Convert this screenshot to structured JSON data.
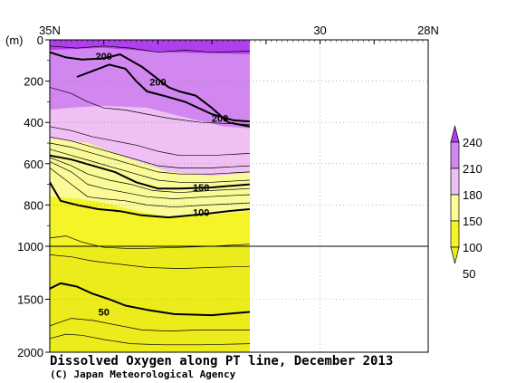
{
  "chart_data": {
    "type": "heatmap",
    "title": "Dissolved Oxygen along PT line, December 2013",
    "credit": "(C) Japan Meteorological Agency",
    "y_unit_label": "(m)",
    "x_axis": {
      "ticks": [
        {
          "value": 35,
          "label": "35N"
        },
        {
          "value": 30,
          "label": "30"
        },
        {
          "value": 28,
          "label": "28N"
        }
      ],
      "range": [
        35,
        28
      ]
    },
    "y_axis": {
      "range": [
        0,
        2000
      ],
      "break_depth": 1000,
      "upper_ticks": [
        0,
        200,
        400,
        600,
        800,
        1000
      ],
      "lower_ticks": [
        1500,
        2000
      ]
    },
    "data_extent_lat": [
      35,
      31.3
    ],
    "colorbar": {
      "labels": [
        "240",
        "210",
        "180",
        "150",
        "100",
        "50"
      ],
      "colors": [
        "#b040ec",
        "#d287f0",
        "#f0c0f4",
        "#fafa98",
        "#f4f428",
        "#ecec1c"
      ]
    },
    "contour_labels": [
      {
        "text": "200",
        "lat": 34.0,
        "depth": 80
      },
      {
        "text": "200",
        "lat": 33.0,
        "depth": 205
      },
      {
        "text": "200",
        "lat": 31.85,
        "depth": 380
      },
      {
        "text": "150",
        "lat": 32.2,
        "depth": 715
      },
      {
        "text": "100",
        "lat": 32.2,
        "depth": 835
      },
      {
        "text": "50",
        "lat": 34.0,
        "depth": 1620
      }
    ],
    "bands": [
      {
        "level": 240,
        "color": "#b040ec",
        "profile": [
          [
            35,
            0
          ],
          [
            31.3,
            0
          ],
          [
            31.3,
            70
          ],
          [
            33,
            60
          ],
          [
            34,
            40
          ],
          [
            35,
            50
          ]
        ]
      },
      {
        "level": 210,
        "color": "#d287f0",
        "profile": [
          [
            35,
            50
          ],
          [
            34,
            40
          ],
          [
            33,
            60
          ],
          [
            31.3,
            70
          ],
          [
            31.3,
            430
          ],
          [
            31.8,
            420
          ],
          [
            32.6,
            370
          ],
          [
            33.2,
            330
          ],
          [
            34,
            320
          ],
          [
            34.6,
            330
          ],
          [
            35,
            340
          ]
        ]
      },
      {
        "level": 180,
        "color": "#f0c0f4",
        "profile": [
          [
            35,
            340
          ],
          [
            34.6,
            330
          ],
          [
            34,
            320
          ],
          [
            33.2,
            330
          ],
          [
            32.6,
            370
          ],
          [
            31.8,
            420
          ],
          [
            31.3,
            430
          ],
          [
            31.3,
            645
          ],
          [
            32,
            660
          ],
          [
            32.8,
            640
          ],
          [
            33.6,
            570
          ],
          [
            34.3,
            500
          ],
          [
            35,
            480
          ]
        ]
      },
      {
        "level": 150,
        "color": "#fafa98",
        "profile": [
          [
            35,
            480
          ],
          [
            34.3,
            500
          ],
          [
            33.6,
            570
          ],
          [
            32.8,
            640
          ],
          [
            32,
            660
          ],
          [
            31.3,
            645
          ],
          [
            31.3,
            830
          ],
          [
            32,
            850
          ],
          [
            32.8,
            860
          ],
          [
            33.4,
            830
          ],
          [
            34,
            790
          ],
          [
            34.5,
            770
          ],
          [
            35,
            760
          ]
        ]
      },
      {
        "level": 100,
        "color": "#f4f428",
        "profile": [
          [
            35,
            760
          ],
          [
            34.5,
            770
          ],
          [
            34,
            790
          ],
          [
            33.4,
            830
          ],
          [
            32.8,
            860
          ],
          [
            32,
            850
          ],
          [
            31.3,
            830
          ],
          [
            31.3,
            1000
          ],
          [
            35,
            1000
          ]
        ]
      },
      {
        "level": 50,
        "color": "#ecec1c",
        "profile": [
          [
            35,
            1000
          ],
          [
            31.3,
            1000
          ],
          [
            31.3,
            2000
          ],
          [
            35,
            2000
          ]
        ]
      }
    ],
    "contours": [
      {
        "level": 200,
        "bold": true,
        "points": [
          [
            35,
            60
          ],
          [
            34.7,
            85
          ],
          [
            34.4,
            95
          ],
          [
            34.0,
            90
          ],
          [
            33.7,
            70
          ],
          [
            33.3,
            130
          ],
          [
            33.0,
            190
          ],
          [
            32.8,
            230
          ],
          [
            32.6,
            250
          ],
          [
            32.3,
            270
          ],
          [
            32.0,
            330
          ],
          [
            31.7,
            400
          ],
          [
            31.3,
            420
          ]
        ]
      },
      {
        "level": 200,
        "bold": true,
        "points": [
          [
            34.5,
            180
          ],
          [
            34.2,
            150
          ],
          [
            33.9,
            120
          ],
          [
            33.6,
            140
          ],
          [
            33.4,
            200
          ],
          [
            33.2,
            250
          ],
          [
            32.9,
            270
          ],
          [
            32.5,
            300
          ],
          [
            32.0,
            360
          ],
          [
            31.6,
            390
          ],
          [
            31.3,
            395
          ]
        ]
      },
      {
        "level": 150,
        "bold": true,
        "points": [
          [
            35,
            560
          ],
          [
            34.6,
            580
          ],
          [
            34.2,
            610
          ],
          [
            33.8,
            640
          ],
          [
            33.4,
            690
          ],
          [
            33.0,
            720
          ],
          [
            32.6,
            720
          ],
          [
            32.0,
            715
          ],
          [
            31.3,
            700
          ]
        ]
      },
      {
        "level": 100,
        "bold": true,
        "points": [
          [
            35,
            690
          ],
          [
            34.8,
            780
          ],
          [
            34.5,
            800
          ],
          [
            34.1,
            820
          ],
          [
            33.7,
            830
          ],
          [
            33.3,
            850
          ],
          [
            32.8,
            860
          ],
          [
            32.2,
            845
          ],
          [
            31.7,
            830
          ],
          [
            31.3,
            820
          ]
        ]
      },
      {
        "level": 50,
        "bold": true,
        "points": [
          [
            35,
            1400
          ],
          [
            34.8,
            1350
          ],
          [
            34.5,
            1380
          ],
          [
            34.2,
            1450
          ],
          [
            33.9,
            1500
          ],
          [
            33.6,
            1560
          ],
          [
            33.2,
            1600
          ],
          [
            32.7,
            1640
          ],
          [
            32.0,
            1650
          ],
          [
            31.3,
            1620
          ]
        ]
      },
      {
        "level": 60,
        "bold": false,
        "points": [
          [
            35,
            1750
          ],
          [
            34.6,
            1680
          ],
          [
            34.2,
            1700
          ],
          [
            33.8,
            1740
          ],
          [
            33.3,
            1790
          ],
          [
            32.8,
            1800
          ],
          [
            32.2,
            1790
          ],
          [
            31.3,
            1790
          ]
        ]
      },
      {
        "level": 70,
        "bold": false,
        "points": [
          [
            35,
            1870
          ],
          [
            34.7,
            1830
          ],
          [
            34.4,
            1840
          ],
          [
            34.0,
            1880
          ],
          [
            33.5,
            1920
          ],
          [
            32.9,
            1930
          ],
          [
            32.2,
            1930
          ],
          [
            31.3,
            1920
          ]
        ]
      },
      {
        "level": 80,
        "bold": false,
        "points": [
          [
            35,
            1080
          ],
          [
            34.6,
            1100
          ],
          [
            34.2,
            1140
          ],
          [
            33.7,
            1170
          ],
          [
            33.2,
            1200
          ],
          [
            32.6,
            1210
          ],
          [
            32.0,
            1200
          ],
          [
            31.3,
            1190
          ]
        ]
      },
      {
        "level": 90,
        "bold": false,
        "points": [
          [
            35,
            960
          ],
          [
            34.7,
            950
          ],
          [
            34.4,
            980
          ],
          [
            34.0,
            1010
          ],
          [
            33.6,
            1020
          ],
          [
            33.2,
            1020
          ],
          [
            32.6,
            1010
          ],
          [
            32.0,
            1000
          ],
          [
            31.3,
            990
          ]
        ]
      },
      {
        "level": 110,
        "bold": false,
        "points": [
          [
            35,
            620
          ],
          [
            34.6,
            700
          ],
          [
            34.3,
            760
          ],
          [
            34.0,
            770
          ],
          [
            33.6,
            780
          ],
          [
            33.2,
            800
          ],
          [
            32.7,
            810
          ],
          [
            32.1,
            800
          ],
          [
            31.3,
            790
          ]
        ]
      },
      {
        "level": 120,
        "bold": false,
        "points": [
          [
            35,
            590
          ],
          [
            34.6,
            640
          ],
          [
            34.3,
            700
          ],
          [
            34.0,
            720
          ],
          [
            33.6,
            740
          ],
          [
            33.2,
            760
          ],
          [
            32.7,
            770
          ],
          [
            32.1,
            760
          ],
          [
            31.3,
            750
          ]
        ]
      },
      {
        "level": 130,
        "bold": false,
        "points": [
          [
            35,
            570
          ],
          [
            34.6,
            610
          ],
          [
            34.3,
            650
          ],
          [
            33.9,
            680
          ],
          [
            33.5,
            700
          ],
          [
            33.1,
            730
          ],
          [
            32.6,
            740
          ],
          [
            32.0,
            730
          ],
          [
            31.3,
            720
          ]
        ]
      },
      {
        "level": 140,
        "bold": false,
        "points": [
          [
            35,
            530
          ],
          [
            34.6,
            560
          ],
          [
            34.2,
            590
          ],
          [
            33.8,
            620
          ],
          [
            33.4,
            650
          ],
          [
            33.0,
            680
          ],
          [
            32.6,
            690
          ],
          [
            32.0,
            690
          ],
          [
            31.3,
            680
          ]
        ]
      },
      {
        "level": 160,
        "bold": false,
        "points": [
          [
            35,
            500
          ],
          [
            34.6,
            520
          ],
          [
            34.2,
            550
          ],
          [
            33.8,
            580
          ],
          [
            33.4,
            610
          ],
          [
            33.0,
            640
          ],
          [
            32.6,
            650
          ],
          [
            32.0,
            650
          ],
          [
            31.3,
            640
          ]
        ]
      },
      {
        "level": 170,
        "bold": false,
        "points": [
          [
            35,
            470
          ],
          [
            34.6,
            490
          ],
          [
            34.2,
            520
          ],
          [
            33.8,
            550
          ],
          [
            33.4,
            580
          ],
          [
            33.0,
            610
          ],
          [
            32.6,
            620
          ],
          [
            32.0,
            620
          ],
          [
            31.3,
            610
          ]
        ]
      },
      {
        "level": 180,
        "bold": false,
        "points": [
          [
            35,
            420
          ],
          [
            34.6,
            440
          ],
          [
            34.2,
            470
          ],
          [
            33.8,
            490
          ],
          [
            33.4,
            510
          ],
          [
            33.0,
            540
          ],
          [
            32.6,
            560
          ],
          [
            32.0,
            560
          ],
          [
            31.3,
            550
          ]
        ]
      },
      {
        "level": 190,
        "bold": false,
        "points": [
          [
            35,
            230
          ],
          [
            34.6,
            260
          ],
          [
            34.3,
            300
          ],
          [
            34.0,
            330
          ],
          [
            33.6,
            340
          ],
          [
            33.2,
            360
          ],
          [
            32.8,
            380
          ],
          [
            32.2,
            400
          ],
          [
            31.3,
            410
          ]
        ]
      },
      {
        "level": 210,
        "bold": false,
        "points": [
          [
            35,
            30
          ],
          [
            34.5,
            40
          ],
          [
            34.0,
            30
          ],
          [
            33.5,
            40
          ],
          [
            33.0,
            60
          ],
          [
            32.5,
            50
          ],
          [
            32.0,
            60
          ],
          [
            31.3,
            55
          ]
        ]
      }
    ]
  }
}
